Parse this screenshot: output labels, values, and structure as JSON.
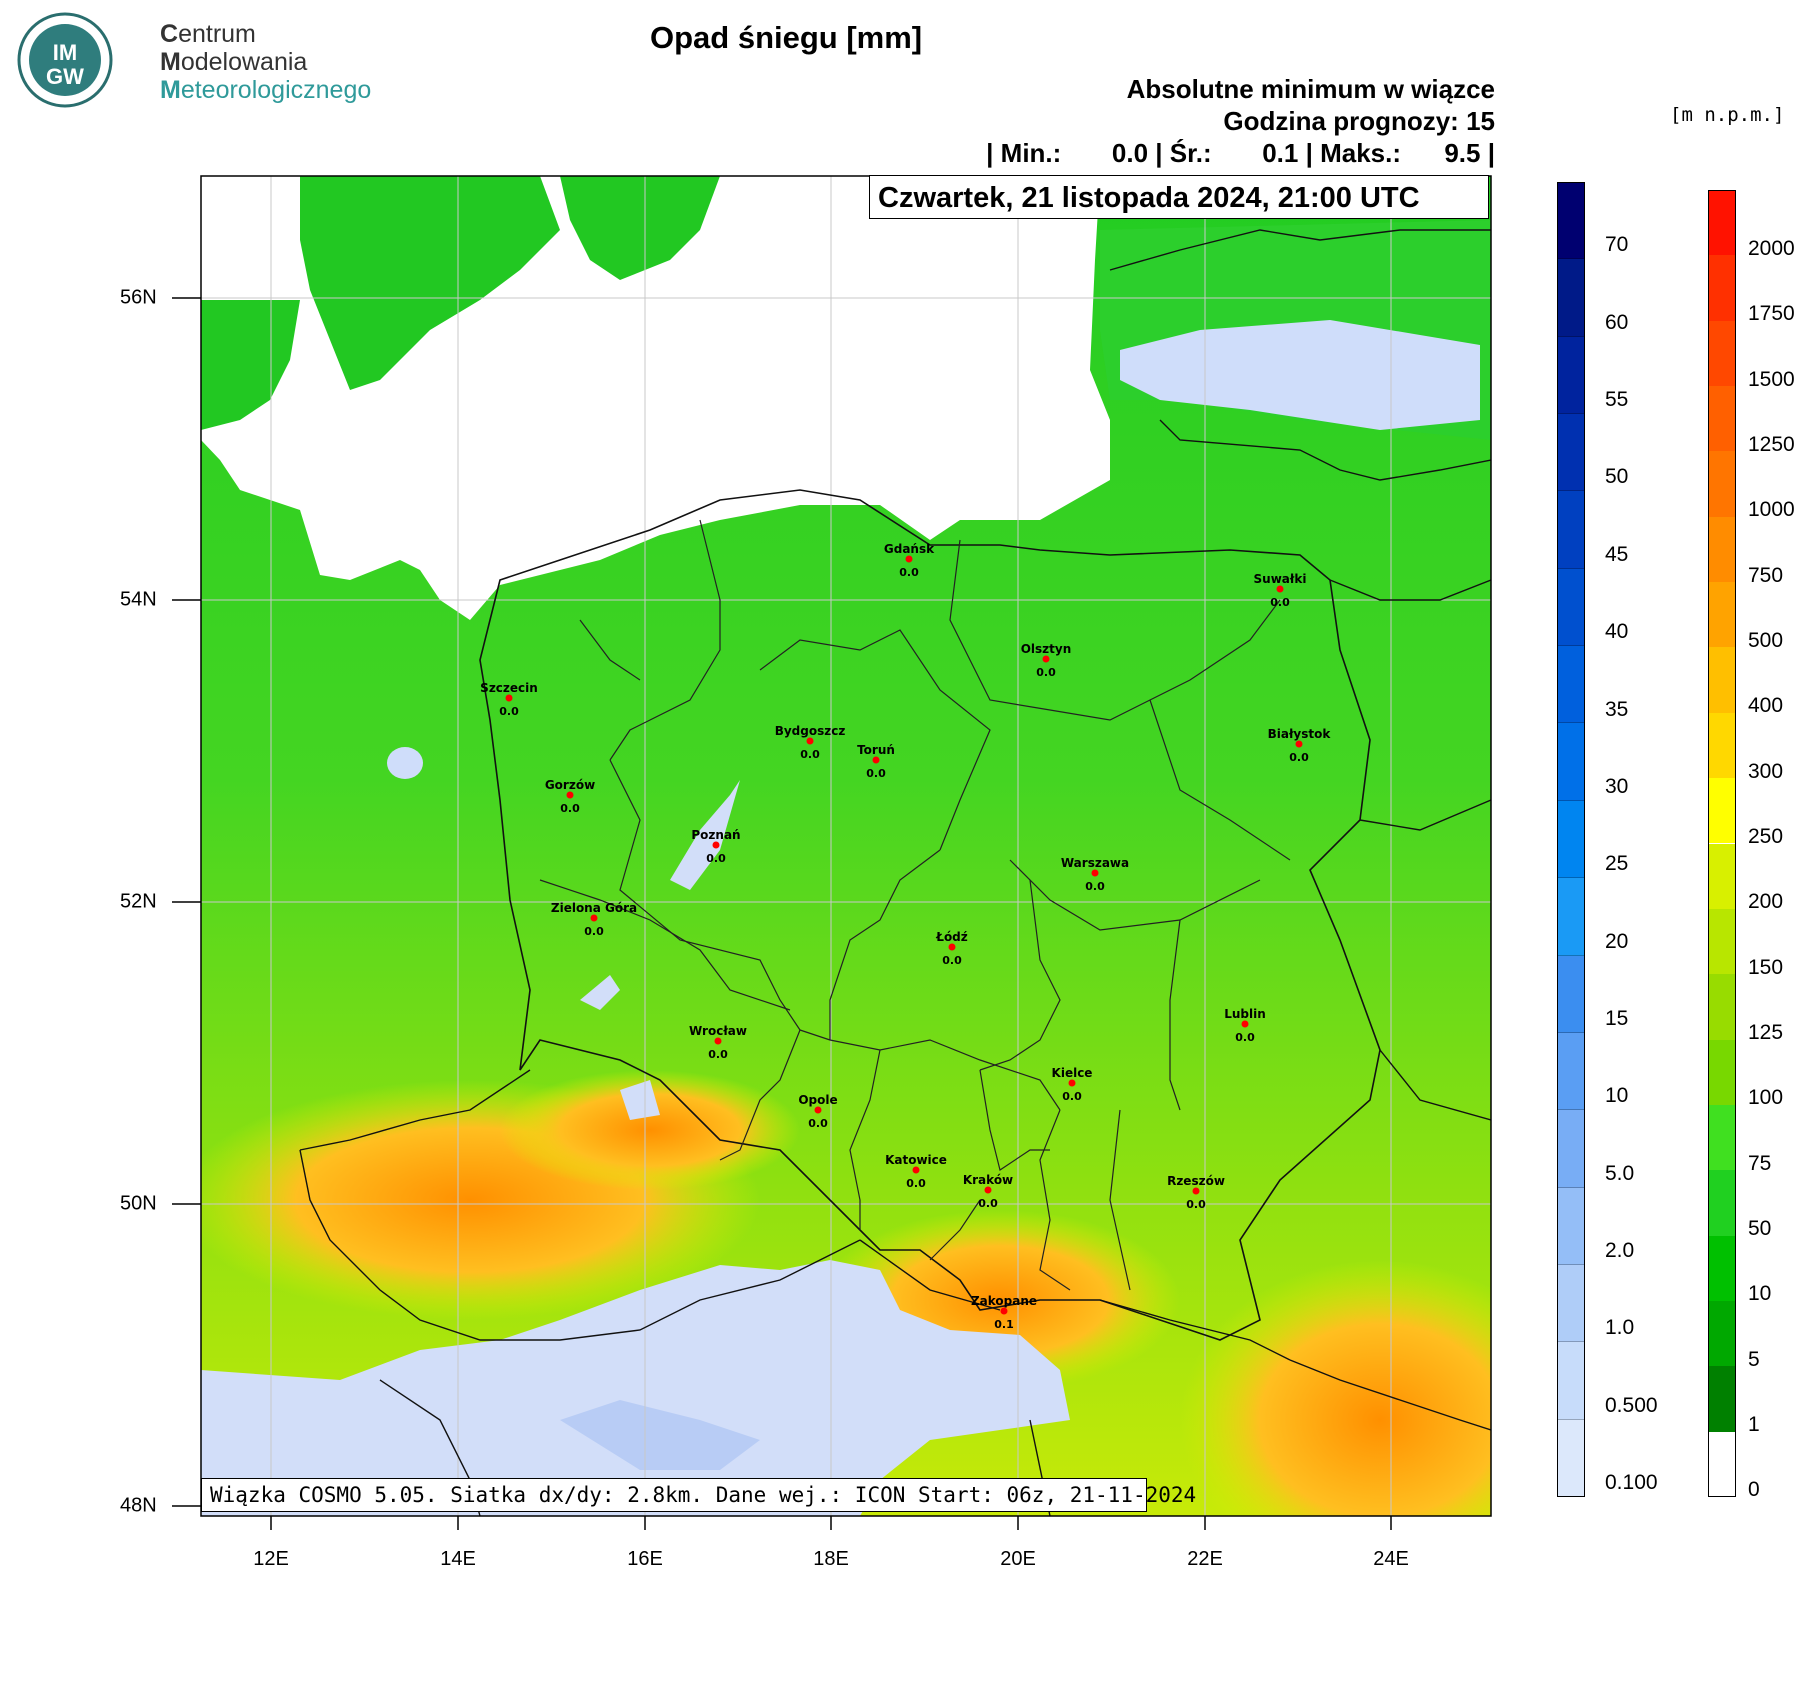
{
  "logo": {
    "badge_top": "IM",
    "badge_bottom": "GW",
    "line1_first": "C",
    "line1_rest": "entrum",
    "line2_first": "M",
    "line2_rest": "odelowania",
    "line3_first": "M",
    "line3_rest": "eteorologicznego"
  },
  "title": "Opad śniegu [mm]",
  "header": {
    "line1": "Absolutne minimum w wiązce",
    "line2": "Godzina prognozy: 15",
    "line3": "| Min.:       0.0 | Śr.:       0.1 | Maks.:      9.5 |"
  },
  "elevation_unit": "[m  n.p.m.]",
  "date_label": "Czwartek, 21 listopada 2024, 21:00 UTC",
  "footer": "Wiązka COSMO 5.05. Siatka dx/dy: 2.8km. Dane wej.: ICON Start: 06z, 21-11-2024",
  "axes": {
    "x_ticks": [
      "12E",
      "14E",
      "16E",
      "18E",
      "20E",
      "22E",
      "24E"
    ],
    "y_ticks": [
      "56N",
      "54N",
      "52N",
      "50N",
      "48N"
    ]
  },
  "snow_colorbar": {
    "labels": [
      "70",
      "60",
      "55",
      "50",
      "45",
      "40",
      "35",
      "30",
      "25",
      "20",
      "15",
      "10",
      "5.0",
      "2.0",
      "1.0",
      "0.500",
      "0.100"
    ],
    "colors": [
      "#000070",
      "#001a88",
      "#00239e",
      "#0030b0",
      "#0040c0",
      "#0050cf",
      "#0060dd",
      "#0070e8",
      "#0085f0",
      "#1a9af5",
      "#3b8ef0",
      "#5a9ef3",
      "#78adf5",
      "#94bef7",
      "#afcdf8",
      "#c7dcfa",
      "#dce8fb"
    ]
  },
  "elev_colorbar": {
    "labels": [
      "2000",
      "1750",
      "1500",
      "1250",
      "1000",
      "750",
      "500",
      "400",
      "300",
      "250",
      "200",
      "150",
      "125",
      "100",
      "75",
      "50",
      "10",
      "5",
      "1",
      "0"
    ],
    "colors": [
      "#ff1200",
      "#ff3000",
      "#ff4800",
      "#ff6000",
      "#ff7500",
      "#ff8c00",
      "#ffa300",
      "#ffbf00",
      "#ffd800",
      "#ffff00",
      "#d8f000",
      "#b8e600",
      "#98dc00",
      "#78d800",
      "#40e020",
      "#20d020",
      "#00c000",
      "#00a800",
      "#008000",
      "#005c00"
    ]
  },
  "cities": [
    {
      "name": "Gdańsk",
      "value": "0.0"
    },
    {
      "name": "Suwałki",
      "value": "0.0"
    },
    {
      "name": "Olsztyn",
      "value": "0.0"
    },
    {
      "name": "Szczecin",
      "value": "0.0"
    },
    {
      "name": "Bydgoszcz",
      "value": "0.0"
    },
    {
      "name": "Toruń",
      "value": "0.0"
    },
    {
      "name": "Białystok",
      "value": "0.0"
    },
    {
      "name": "Gorzów",
      "value": "0.0"
    },
    {
      "name": "Poznań",
      "value": "0.0"
    },
    {
      "name": "Warszawa",
      "value": "0.0"
    },
    {
      "name": "Zielona Góra",
      "value": "0.0"
    },
    {
      "name": "Łódź",
      "value": "0.0"
    },
    {
      "name": "Wrocław",
      "value": "0.0"
    },
    {
      "name": "Lublin",
      "value": "0.0"
    },
    {
      "name": "Kielce",
      "value": "0.0"
    },
    {
      "name": "Opole",
      "value": "0.0"
    },
    {
      "name": "Katowice",
      "value": "0.0"
    },
    {
      "name": "Kraków",
      "value": "0.0"
    },
    {
      "name": "Rzeszów",
      "value": "0.0"
    },
    {
      "name": "Zakopane",
      "value": "0.1"
    }
  ]
}
